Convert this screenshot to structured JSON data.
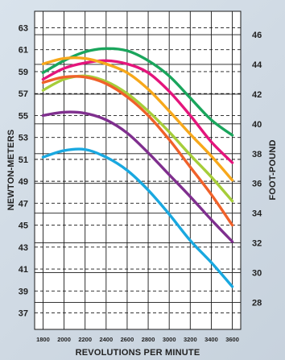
{
  "chart_data": {
    "type": "line",
    "title": "",
    "xlabel": "REVOLUTIONS PER MINUTE",
    "ylabel": "NEWTON-METERS",
    "ylabel_right": "FOOT-POUND",
    "x_ticks": [
      1800,
      2000,
      2200,
      2400,
      2600,
      2800,
      3000,
      3200,
      3400,
      3600
    ],
    "xlim": [
      1720,
      3680
    ],
    "y_ticks": [
      37,
      39,
      41,
      43,
      45,
      47,
      49,
      51,
      53,
      55,
      57,
      59,
      61,
      63
    ],
    "ylim": [
      35.5,
      64.5
    ],
    "y_ticks_right": [
      28,
      30,
      32,
      34,
      36,
      38,
      40,
      42,
      44,
      46
    ],
    "grid": true,
    "series": [
      {
        "color": "#1aa55c",
        "x": [
          1800,
          2000,
          2200,
          2400,
          2600,
          2800,
          3000,
          3200,
          3400,
          3600
        ],
        "values": [
          58.9,
          60.0,
          60.8,
          61.1,
          60.9,
          60.0,
          58.6,
          56.6,
          54.6,
          53.2
        ]
      },
      {
        "color": "#e4157c",
        "x": [
          1800,
          2000,
          2200,
          2400,
          2600,
          2800,
          3000,
          3200,
          3400,
          3600
        ],
        "values": [
          58.3,
          59.3,
          59.8,
          60.0,
          59.7,
          58.9,
          57.2,
          55.0,
          52.6,
          50.7
        ]
      },
      {
        "color": "#f7a81b",
        "x": [
          1800,
          2000,
          2200,
          2400,
          2600,
          2800,
          3000,
          3200,
          3400,
          3600
        ],
        "values": [
          59.7,
          60.2,
          60.2,
          59.7,
          58.9,
          57.4,
          55.4,
          53.3,
          51.3,
          49.1
        ]
      },
      {
        "color": "#a6cd3a",
        "x": [
          1800,
          2000,
          2200,
          2400,
          2600,
          2800,
          3000,
          3200,
          3400,
          3600
        ],
        "values": [
          57.3,
          58.3,
          58.6,
          58.1,
          57.0,
          55.4,
          53.5,
          51.4,
          49.4,
          47.2
        ]
      },
      {
        "color": "#f0612a",
        "x": [
          1800,
          2000,
          2200,
          2400,
          2600,
          2800,
          3000,
          3200,
          3400,
          3600
        ],
        "values": [
          58.0,
          58.5,
          58.5,
          57.9,
          56.7,
          55.0,
          52.8,
          50.3,
          47.8,
          45.0
        ]
      },
      {
        "color": "#7f2f8e",
        "x": [
          1800,
          2000,
          2200,
          2400,
          2600,
          2800,
          3000,
          3200,
          3400,
          3600
        ],
        "values": [
          55.0,
          55.3,
          55.2,
          54.6,
          53.4,
          51.6,
          49.6,
          47.6,
          45.5,
          43.5
        ]
      },
      {
        "color": "#19a8e0",
        "x": [
          1800,
          2000,
          2200,
          2400,
          2600,
          2800,
          3000,
          3200,
          3400,
          3600
        ],
        "values": [
          51.2,
          51.8,
          51.9,
          51.2,
          50.0,
          48.2,
          46.0,
          43.6,
          41.6,
          39.4
        ]
      }
    ]
  }
}
